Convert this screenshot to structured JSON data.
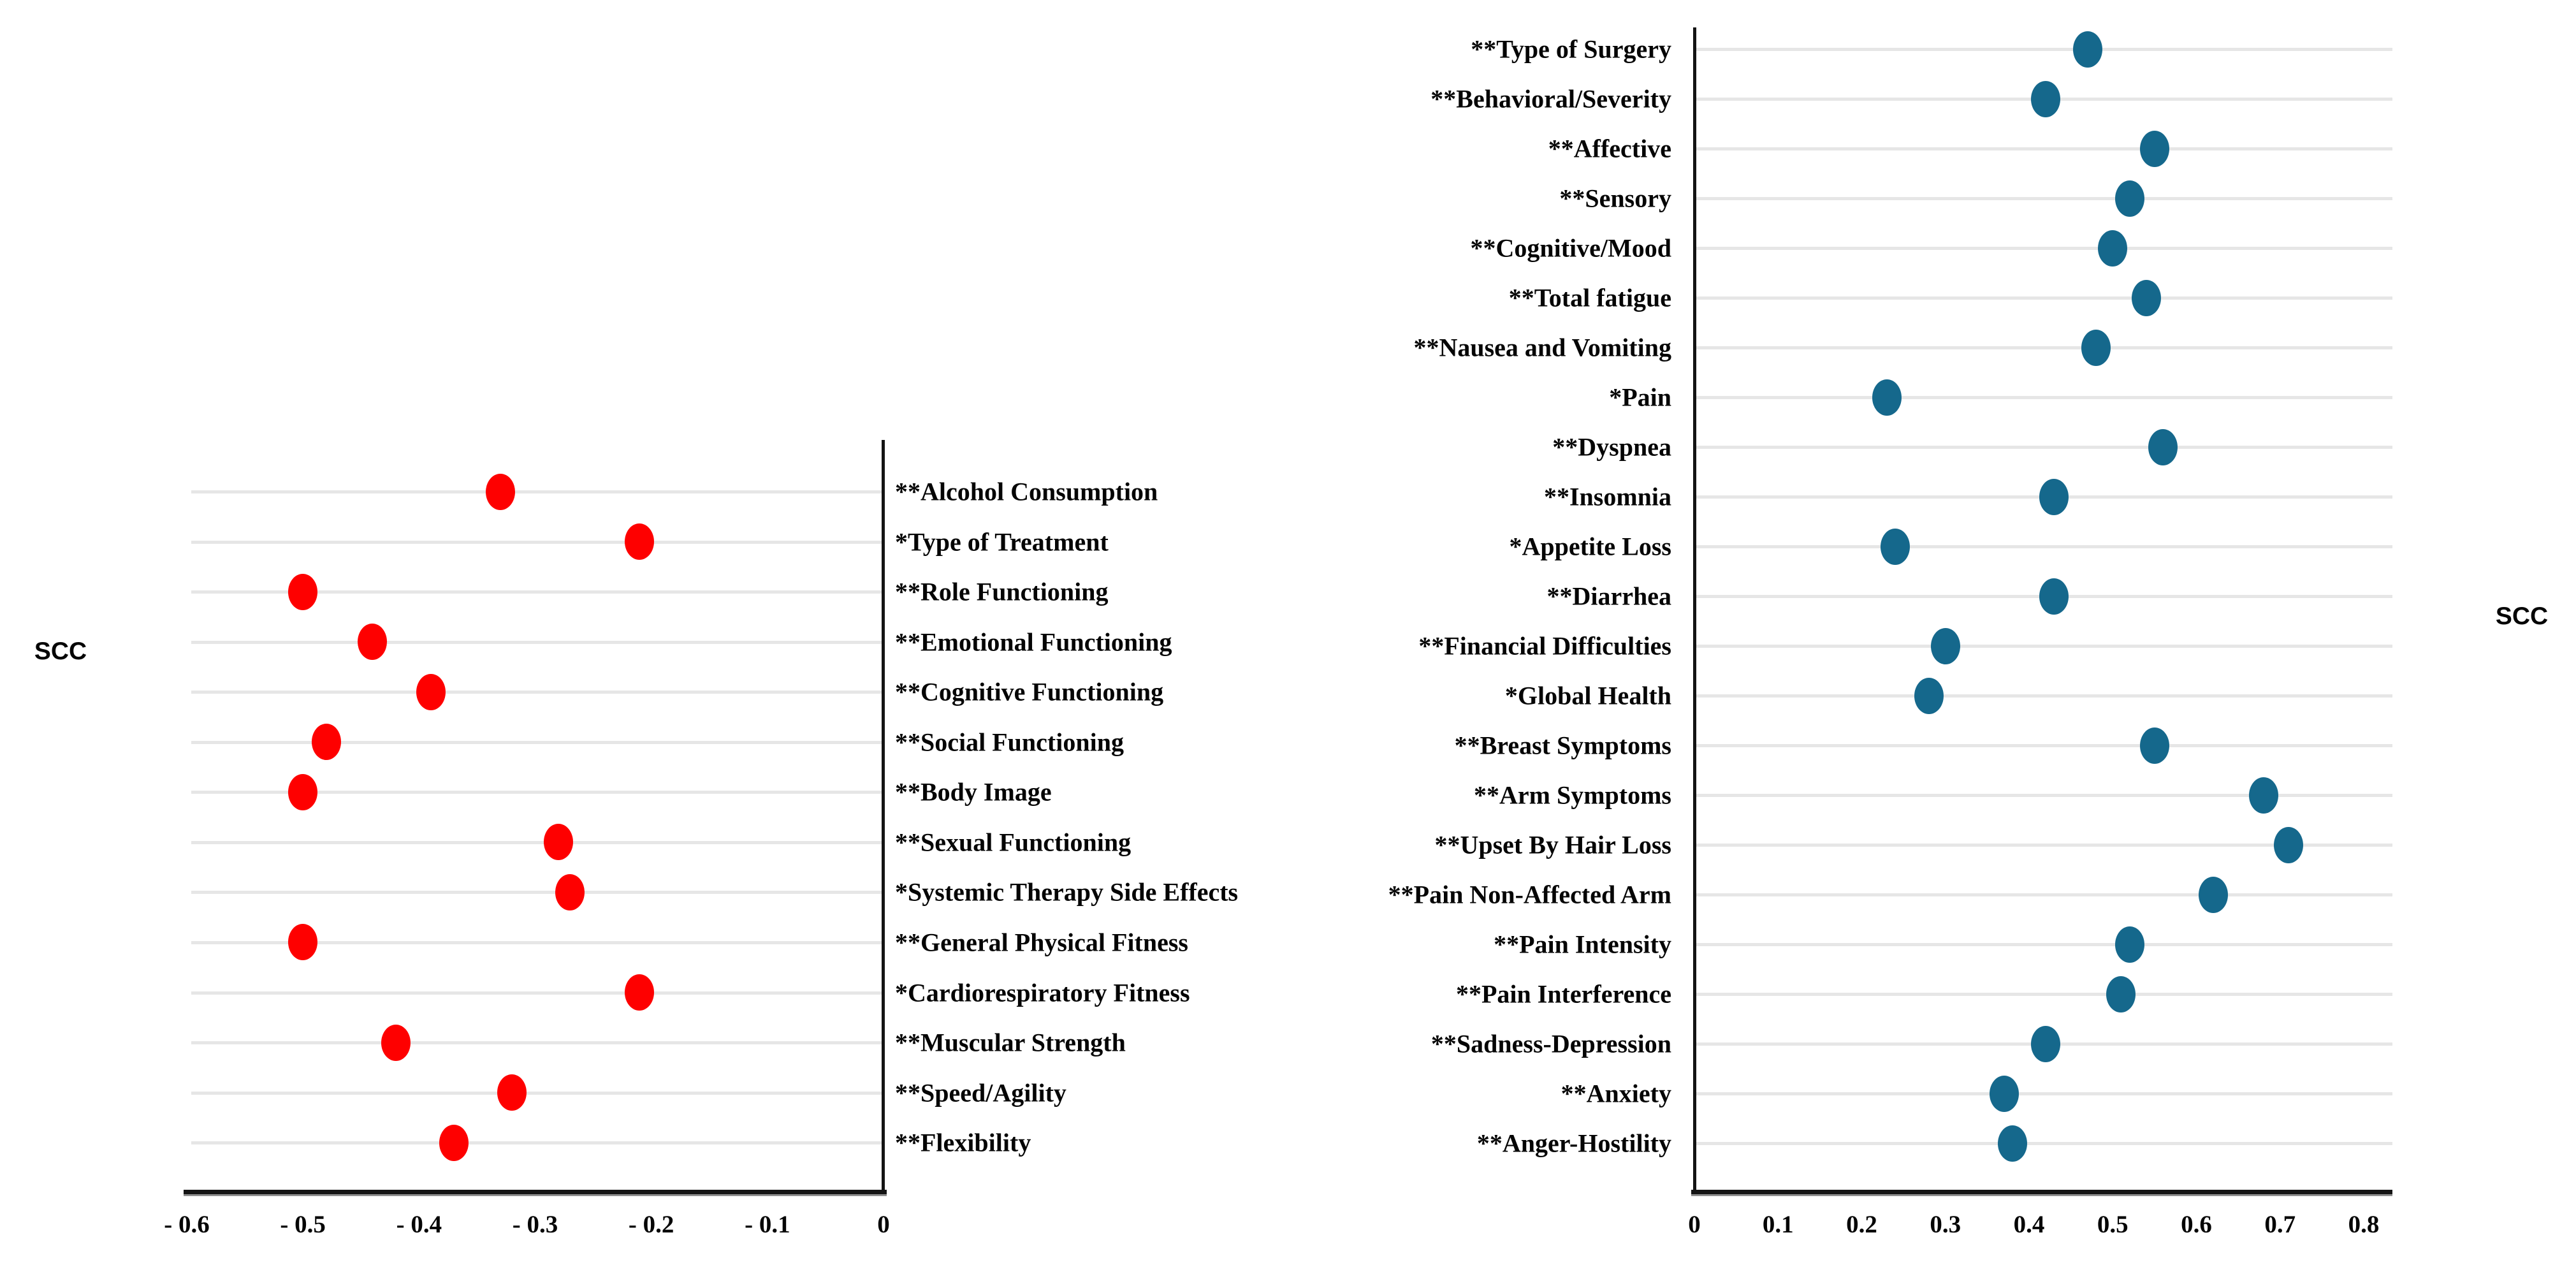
{
  "figure": {
    "background": "#ffffff",
    "left_axis_label": "SCC",
    "right_axis_label": "SCC"
  },
  "chart_data": [
    {
      "type": "scatter",
      "side": "left",
      "title": "",
      "xlabel": "",
      "ylabel": "SCC",
      "dot_color": "#fe0000",
      "grid": true,
      "xlim": [
        -0.6,
        0
      ],
      "xticks": [
        -0.6,
        -0.5,
        -0.4,
        -0.3,
        -0.2,
        -0.1,
        0
      ],
      "xtick_labels": [
        "- 0.6",
        "- 0.5",
        "- 0.4",
        "- 0.3",
        "- 0.2",
        "- 0.1",
        "0"
      ],
      "categories": [
        "**Alcohol Consumption",
        "*Type of Treatment",
        "**Role Functioning",
        "**Emotional Functioning",
        "**Cognitive Functioning",
        "**Social Functioning",
        "**Body Image",
        "**Sexual Functioning",
        "*Systemic Therapy Side Effects",
        "**General Physical Fitness",
        "*Cardiorespiratory Fitness",
        "**Muscular Strength",
        "**Speed/Agility",
        "**Flexibility"
      ],
      "values": [
        -0.33,
        -0.21,
        -0.5,
        -0.44,
        -0.39,
        -0.48,
        -0.5,
        -0.28,
        -0.27,
        -0.5,
        -0.21,
        -0.42,
        -0.32,
        -0.37
      ]
    },
    {
      "type": "scatter",
      "side": "right",
      "title": "",
      "xlabel": "",
      "ylabel": "SCC",
      "dot_color": "#15688c",
      "grid": true,
      "xlim": [
        0,
        0.8
      ],
      "xticks": [
        0,
        0.1,
        0.2,
        0.3,
        0.4,
        0.5,
        0.6,
        0.7,
        0.8
      ],
      "xtick_labels": [
        "0",
        "0.1",
        "0.2",
        "0.3",
        "0.4",
        "0.5",
        "0.6",
        "0.7",
        "0.8"
      ],
      "categories": [
        "**Type of Surgery",
        "**Behavioral/Severity",
        "**Affective",
        "**Sensory",
        "**Cognitive/Mood",
        "**Total fatigue",
        "**Nausea and Vomiting",
        "*Pain",
        "**Dyspnea",
        "**Insomnia",
        "*Appetite Loss",
        "**Diarrhea",
        "**Financial Difficulties",
        "*Global Health",
        "**Breast Symptoms",
        "**Arm Symptoms",
        "**Upset By Hair Loss",
        "**Pain Non-Affected Arm",
        "**Pain Intensity",
        "**Pain Interference",
        "**Sadness-Depression",
        "**Anxiety",
        "**Anger-Hostility"
      ],
      "values": [
        0.47,
        0.42,
        0.55,
        0.52,
        0.5,
        0.54,
        0.48,
        0.23,
        0.56,
        0.43,
        0.24,
        0.43,
        0.3,
        0.28,
        0.55,
        0.68,
        0.71,
        0.62,
        0.52,
        0.51,
        0.42,
        0.37,
        0.38
      ]
    }
  ]
}
